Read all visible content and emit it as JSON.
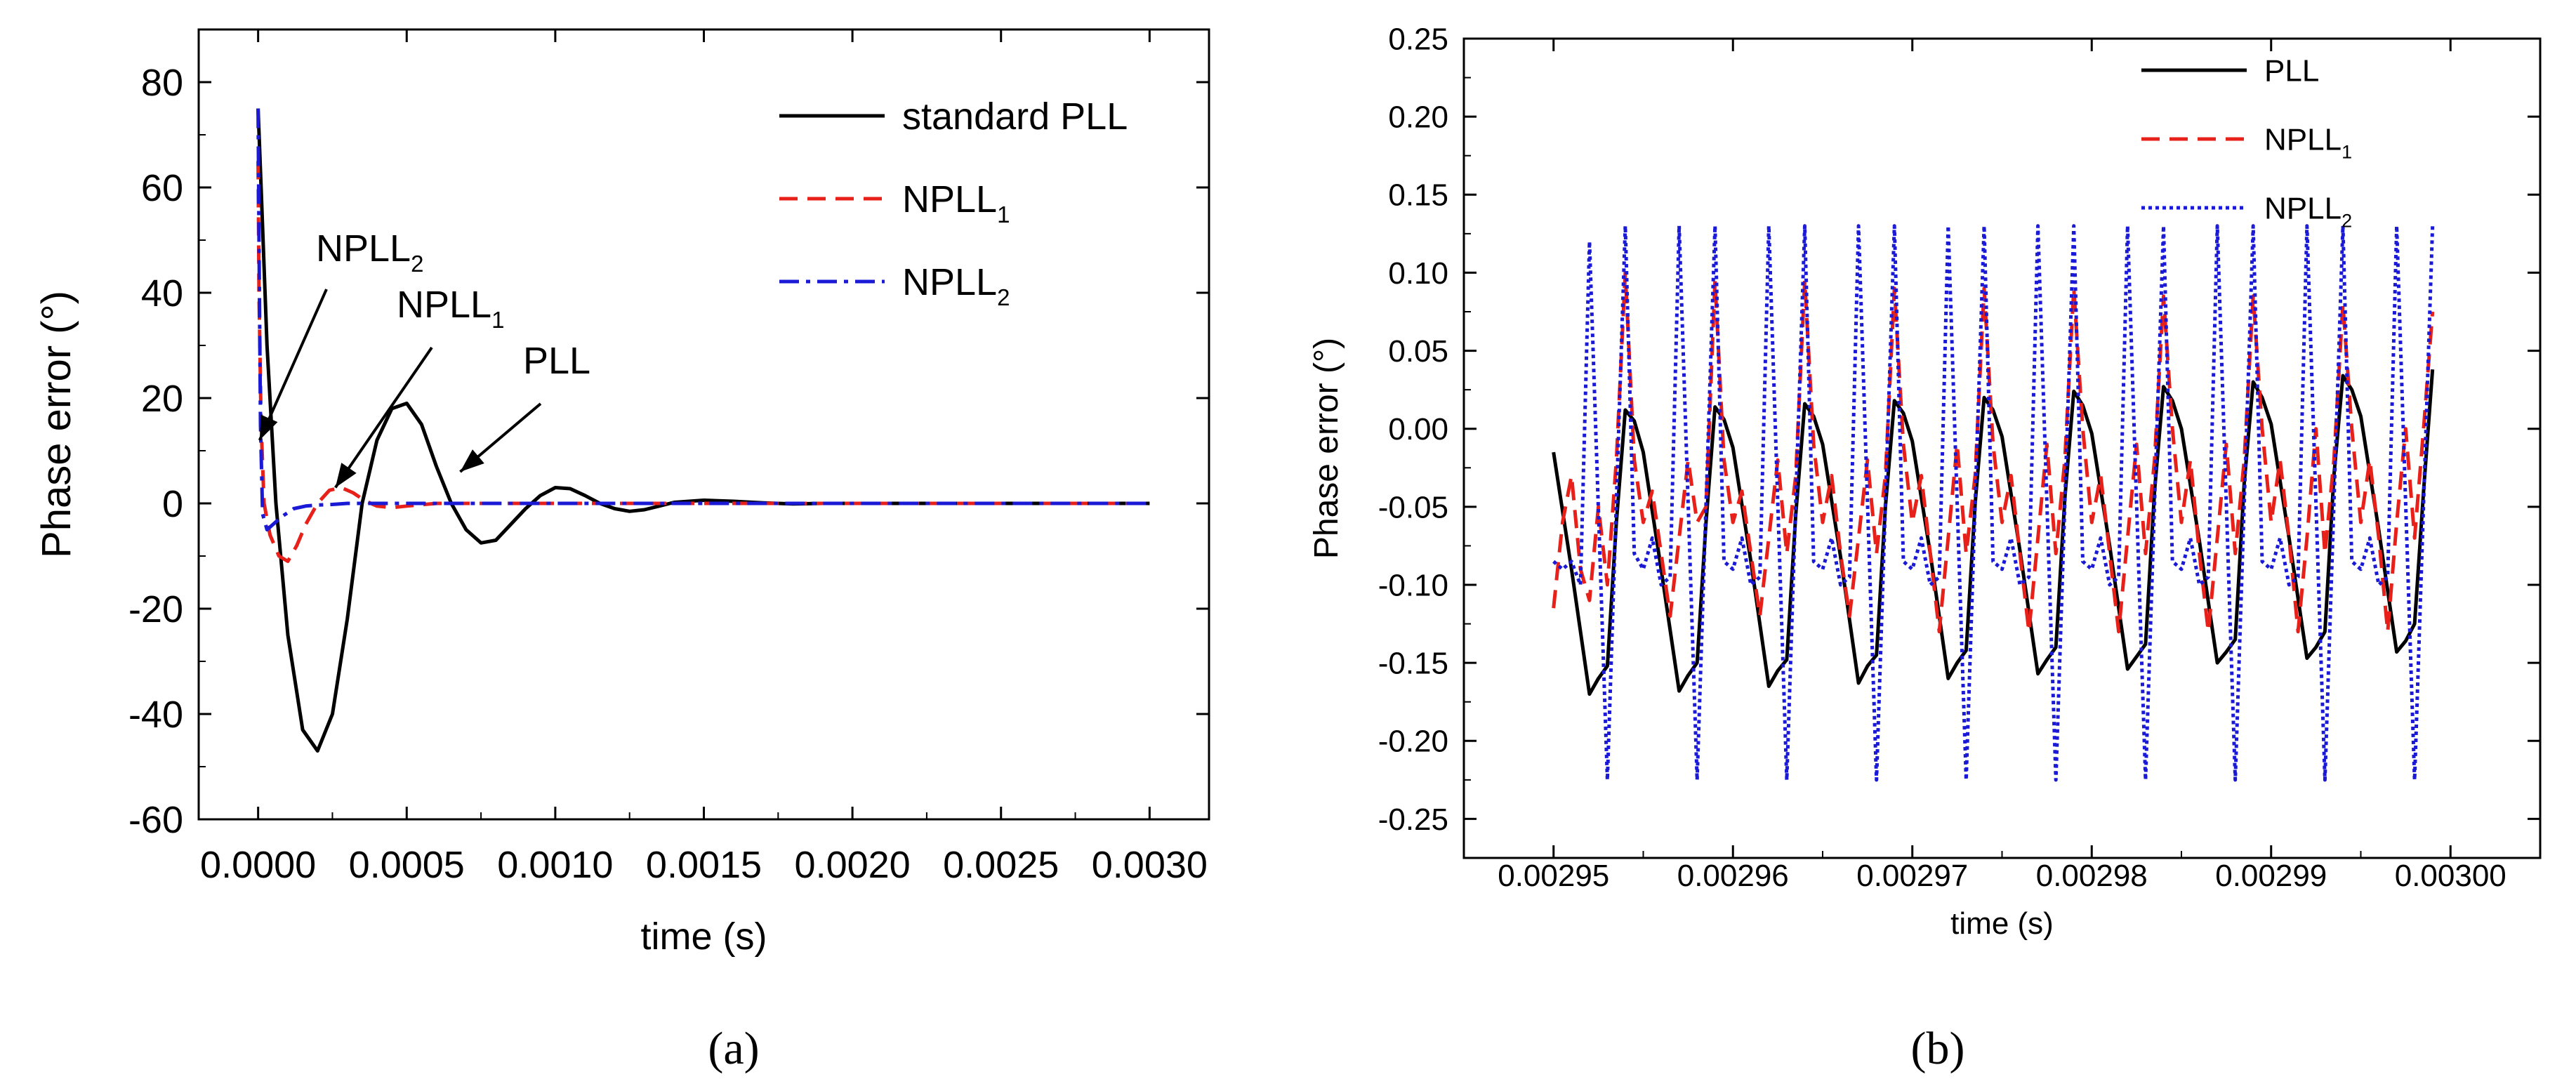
{
  "chart_data": [
    {
      "panel": "(a)",
      "type": "line",
      "xlabel": "time (s)",
      "ylabel": "Phase error (°)",
      "xlim": [
        -0.0002,
        0.0032
      ],
      "ylim": [
        -60,
        90
      ],
      "xticks": [
        0.0,
        0.0005,
        0.001,
        0.0015,
        0.002,
        0.0025,
        0.003
      ],
      "xticklabels": [
        "0.0000",
        "0.0005",
        "0.0010",
        "0.0015",
        "0.0020",
        "0.0025",
        "0.0030"
      ],
      "yticks": [
        -60,
        -40,
        -20,
        0,
        20,
        40,
        60,
        80
      ],
      "yticklabels": [
        "-60",
        "-40",
        "-20",
        "0",
        "20",
        "40",
        "60",
        "80"
      ],
      "legend": {
        "position": "top-right",
        "entries": [
          {
            "label": "standard PLL",
            "base": "standard PLL",
            "sub": "",
            "color": "#000000",
            "style": "solid"
          },
          {
            "label": "NPLL1",
            "base": "NPLL",
            "sub": "1",
            "color": "#e8201a",
            "style": "dashed"
          },
          {
            "label": "NPLL2",
            "base": "NPLL",
            "sub": "2",
            "color": "#1a1ad6",
            "style": "dashdot"
          }
        ]
      },
      "annotations": [
        {
          "base": "NPLL",
          "sub": "2",
          "points_to": [
            5e-06,
            12
          ]
        },
        {
          "base": "NPLL",
          "sub": "1",
          "points_to": [
            0.00026,
            3
          ]
        },
        {
          "base": "PLL",
          "sub": "",
          "points_to": [
            0.00068,
            6
          ]
        }
      ],
      "series": [
        {
          "name": "standard PLL",
          "color": "#000000",
          "style": "solid",
          "x": [
            0,
            1e-05,
            3e-05,
            6e-05,
            0.0001,
            0.00015,
            0.0002,
            0.00025,
            0.0003,
            0.00035,
            0.0004,
            0.00045,
            0.0005,
            0.00055,
            0.0006,
            0.00065,
            0.0007,
            0.00075,
            0.0008,
            0.00085,
            0.0009,
            0.00095,
            0.001,
            0.00105,
            0.0011,
            0.00115,
            0.0012,
            0.00125,
            0.0013,
            0.00135,
            0.0014,
            0.0015,
            0.0016,
            0.0017,
            0.0018,
            0.0019,
            0.002,
            0.0025,
            0.003
          ],
          "y": [
            75,
            60,
            30,
            0,
            -25,
            -43,
            -47,
            -40,
            -22,
            0,
            12,
            18,
            19,
            15,
            7,
            0,
            -5,
            -7.5,
            -7,
            -4,
            -1,
            1.5,
            3,
            2.8,
            1.5,
            0,
            -1,
            -1.5,
            -1.2,
            -0.5,
            0.2,
            0.6,
            0.4,
            0.1,
            -0.1,
            0,
            0,
            0,
            0
          ]
        },
        {
          "name": "NPLL1",
          "color": "#e8201a",
          "style": "dashed",
          "x": [
            0,
            3e-06,
            1e-05,
            2e-05,
            4e-05,
            7e-05,
            0.0001,
            0.00013,
            0.00016,
            0.0002,
            0.00024,
            0.00028,
            0.00032,
            0.00036,
            0.0004,
            0.00045,
            0.0005,
            0.0006,
            0.0008,
            0.001,
            0.0015,
            0.002,
            0.0025,
            0.003
          ],
          "y": [
            65,
            40,
            15,
            0,
            -6,
            -10,
            -11,
            -8,
            -4,
            0,
            2.5,
            3,
            2,
            0.5,
            -0.5,
            -0.8,
            -0.5,
            0,
            0,
            0,
            0,
            0,
            0,
            0
          ]
        },
        {
          "name": "NPLL2",
          "color": "#1a1ad6",
          "style": "dashdot",
          "x": [
            0,
            3e-06,
            8e-06,
            1.5e-05,
            3e-05,
            5e-05,
            8e-05,
            0.00012,
            0.00016,
            0.0002,
            0.00025,
            0.0003,
            0.0004,
            0.0005,
            0.001,
            0.0015,
            0.002,
            0.0025,
            0.003
          ],
          "y": [
            75,
            50,
            15,
            -2,
            -5,
            -4,
            -2.5,
            -1,
            -0.5,
            -0.3,
            -0.2,
            0,
            0,
            0,
            0,
            0,
            0,
            0,
            0
          ]
        }
      ]
    },
    {
      "panel": "(b)",
      "type": "line",
      "xlabel": "time (s)",
      "ylabel": "Phase error (°)",
      "xlim": [
        0.002945,
        0.003005
      ],
      "ylim": [
        -0.275,
        0.25
      ],
      "xticks": [
        0.00295,
        0.00296,
        0.00297,
        0.00298,
        0.00299,
        0.003
      ],
      "xticklabels": [
        "0.00295",
        "0.00296",
        "0.00297",
        "0.00298",
        "0.00299",
        "0.00300"
      ],
      "yticks": [
        -0.25,
        -0.2,
        -0.15,
        -0.1,
        -0.05,
        0.0,
        0.05,
        0.1,
        0.15,
        0.2,
        0.25
      ],
      "yticklabels": [
        "-0.25",
        "-0.20",
        "-0.15",
        "-0.10",
        "-0.05",
        "0.00",
        "0.05",
        "0.10",
        "0.15",
        "0.20",
        "0.25"
      ],
      "legend": {
        "position": "top-center",
        "entries": [
          {
            "label": "PLL",
            "base": "PLL",
            "sub": "",
            "color": "#000000",
            "style": "solid"
          },
          {
            "label": "NPLL1",
            "base": "NPLL",
            "sub": "1",
            "color": "#e8201a",
            "style": "dashed"
          },
          {
            "label": "NPLL2",
            "base": "NPLL",
            "sub": "2",
            "color": "#1a1ad6",
            "style": "dotted"
          }
        ]
      },
      "series": [
        {
          "name": "PLL",
          "color": "#000000",
          "style": "solid",
          "x": [
            0.00295,
            0.002951,
            0.002952,
            0.0029525,
            0.002953,
            0.0029535,
            0.002954,
            0.0029545,
            0.002955,
            0.002956,
            0.002957,
            0.0029575,
            0.002958,
            0.0029585,
            0.002959,
            0.0029595,
            0.00296,
            0.002961,
            0.002962,
            0.0029625,
            0.002963,
            0.0029635,
            0.002964,
            0.0029645,
            0.002965,
            0.002966,
            0.002967,
            0.0029675,
            0.002968,
            0.0029685,
            0.002969,
            0.0029695,
            0.00297,
            0.002971,
            0.002972,
            0.0029725,
            0.002973,
            0.0029735,
            0.002974,
            0.0029745,
            0.002975,
            0.002976,
            0.002977,
            0.0029775,
            0.002978,
            0.0029785,
            0.002979,
            0.0029795,
            0.00298,
            0.002981,
            0.002982,
            0.0029825,
            0.002983,
            0.0029835,
            0.002984,
            0.0029845,
            0.002985,
            0.002986,
            0.002987,
            0.0029875,
            0.002988,
            0.0029885,
            0.002989,
            0.0029895,
            0.00299,
            0.002991,
            0.002992,
            0.0029925,
            0.002993,
            0.0029935,
            0.002994,
            0.0029945,
            0.002995,
            0.002996,
            0.002997,
            0.0029975,
            0.002998,
            0.0029985,
            0.002999
          ],
          "y": [
            -0.015,
            -0.09,
            -0.17,
            -0.16,
            -0.152,
            -0.06,
            0.012,
            0.005,
            -0.015,
            -0.09,
            -0.168,
            -0.158,
            -0.15,
            -0.06,
            0.014,
            0.006,
            -0.012,
            -0.085,
            -0.165,
            -0.155,
            -0.148,
            -0.055,
            0.016,
            0.008,
            -0.01,
            -0.082,
            -0.163,
            -0.152,
            -0.145,
            -0.05,
            0.018,
            0.01,
            -0.008,
            -0.08,
            -0.16,
            -0.15,
            -0.142,
            -0.048,
            0.02,
            0.012,
            -0.005,
            -0.078,
            -0.157,
            -0.148,
            -0.14,
            -0.045,
            0.024,
            0.015,
            -0.003,
            -0.075,
            -0.154,
            -0.146,
            -0.138,
            -0.04,
            0.027,
            0.018,
            0.0,
            -0.072,
            -0.15,
            -0.143,
            -0.135,
            -0.035,
            0.03,
            0.02,
            0.003,
            -0.07,
            -0.147,
            -0.14,
            -0.13,
            -0.03,
            0.034,
            0.025,
            0.008,
            -0.065,
            -0.143,
            -0.136,
            -0.125,
            -0.04,
            0.038
          ]
        },
        {
          "name": "NPLL1",
          "color": "#e8201a",
          "style": "dashed",
          "x": [
            0.00295,
            0.0029505,
            0.002951,
            0.0029515,
            0.002952,
            0.0029525,
            0.002953,
            0.0029535,
            0.002954,
            0.0029545,
            0.002955,
            0.0029555,
            0.002956,
            0.0029565,
            0.002957,
            0.0029575,
            0.002958,
            0.0029585,
            0.002959,
            0.0029595,
            0.00296,
            0.0029605,
            0.002961,
            0.0029615,
            0.002962,
            0.0029625,
            0.002963,
            0.0029635,
            0.002964,
            0.0029645,
            0.002965,
            0.0029655,
            0.002966,
            0.0029665,
            0.002967,
            0.0029675,
            0.002968,
            0.0029685,
            0.002969,
            0.0029695,
            0.00297,
            0.0029705,
            0.002971,
            0.0029715,
            0.002972,
            0.0029725,
            0.002973,
            0.0029735,
            0.002974,
            0.0029745,
            0.002975,
            0.0029755,
            0.002976,
            0.0029765,
            0.002977,
            0.0029775,
            0.002978,
            0.0029785,
            0.002979,
            0.0029795,
            0.00298,
            0.0029805,
            0.002981,
            0.0029815,
            0.002982,
            0.0029825,
            0.002983,
            0.0029835,
            0.002984,
            0.0029845,
            0.002985,
            0.0029855,
            0.002986,
            0.0029865,
            0.002987,
            0.0029875,
            0.002988,
            0.0029885,
            0.002989,
            0.0029895,
            0.00299,
            0.0029905,
            0.002991,
            0.0029915,
            0.002992,
            0.0029925,
            0.002993,
            0.0029935,
            0.002994,
            0.0029945,
            0.002995,
            0.0029955,
            0.002996,
            0.0029965,
            0.002997,
            0.0029975,
            0.002998,
            0.0029985,
            0.002999
          ],
          "y": [
            -0.115,
            -0.06,
            -0.03,
            -0.09,
            -0.11,
            -0.05,
            -0.1,
            -0.02,
            0.1,
            -0.02,
            -0.06,
            -0.04,
            -0.08,
            -0.12,
            -0.07,
            -0.02,
            -0.06,
            -0.05,
            0.095,
            -0.02,
            -0.06,
            -0.04,
            -0.08,
            -0.12,
            -0.07,
            -0.02,
            -0.08,
            -0.03,
            0.095,
            -0.01,
            -0.06,
            -0.03,
            -0.08,
            -0.12,
            -0.07,
            -0.02,
            -0.08,
            -0.03,
            0.09,
            -0.01,
            -0.06,
            -0.03,
            -0.08,
            -0.13,
            -0.07,
            -0.01,
            -0.08,
            -0.03,
            0.09,
            -0.01,
            -0.06,
            -0.03,
            -0.08,
            -0.13,
            -0.07,
            -0.01,
            -0.08,
            -0.02,
            0.09,
            0.0,
            -0.06,
            -0.03,
            -0.08,
            -0.13,
            -0.07,
            -0.01,
            -0.08,
            -0.02,
            0.085,
            0.0,
            -0.06,
            -0.02,
            -0.08,
            -0.13,
            -0.07,
            -0.01,
            -0.08,
            -0.02,
            0.085,
            0.0,
            -0.06,
            -0.02,
            -0.07,
            -0.13,
            -0.07,
            0.0,
            -0.08,
            -0.02,
            0.08,
            0.0,
            -0.06,
            -0.02,
            -0.07,
            -0.13,
            -0.06,
            0.0,
            -0.07,
            0.0,
            0.075
          ]
        },
        {
          "name": "NPLL2",
          "color": "#1a1ad6",
          "style": "dotted",
          "x": [
            0.00295,
            0.0029505,
            0.002951,
            0.0029515,
            0.002952,
            0.002953,
            0.002954,
            0.0029545,
            0.002955,
            0.0029555,
            0.002956,
            0.0029565,
            0.002957,
            0.002958,
            0.002959,
            0.0029595,
            0.00296,
            0.0029605,
            0.002961,
            0.0029615,
            0.002962,
            0.002963,
            0.002964,
            0.0029645,
            0.002965,
            0.0029655,
            0.002966,
            0.0029665,
            0.002967,
            0.002968,
            0.002969,
            0.0029695,
            0.00297,
            0.0029705,
            0.002971,
            0.0029715,
            0.002972,
            0.002973,
            0.002974,
            0.0029745,
            0.002975,
            0.0029755,
            0.002976,
            0.0029765,
            0.002977,
            0.002978,
            0.002979,
            0.0029795,
            0.00298,
            0.0029805,
            0.002981,
            0.0029815,
            0.002982,
            0.002983,
            0.002984,
            0.0029845,
            0.002985,
            0.0029855,
            0.002986,
            0.0029865,
            0.002987,
            0.002988,
            0.002989,
            0.0029895,
            0.00299,
            0.0029905,
            0.002991,
            0.0029915,
            0.002992,
            0.002993,
            0.002994,
            0.0029945,
            0.002995,
            0.0029955,
            0.002996,
            0.0029965,
            0.002997,
            0.002998,
            0.002999
          ],
          "y": [
            -0.085,
            -0.09,
            -0.085,
            -0.1,
            0.12,
            -0.225,
            0.13,
            -0.08,
            -0.09,
            -0.07,
            -0.1,
            -0.095,
            0.13,
            -0.225,
            0.13,
            -0.085,
            -0.09,
            -0.07,
            -0.1,
            -0.095,
            0.13,
            -0.225,
            0.13,
            -0.085,
            -0.09,
            -0.07,
            -0.1,
            -0.095,
            0.13,
            -0.225,
            0.13,
            -0.085,
            -0.09,
            -0.07,
            -0.1,
            -0.095,
            0.13,
            -0.225,
            0.13,
            -0.085,
            -0.09,
            -0.07,
            -0.1,
            -0.095,
            0.13,
            -0.225,
            0.13,
            -0.085,
            -0.09,
            -0.07,
            -0.1,
            -0.095,
            0.13,
            -0.225,
            0.13,
            -0.085,
            -0.09,
            -0.07,
            -0.1,
            -0.095,
            0.13,
            -0.225,
            0.13,
            -0.085,
            -0.09,
            -0.07,
            -0.1,
            -0.095,
            0.13,
            -0.225,
            0.13,
            -0.085,
            -0.09,
            -0.07,
            -0.1,
            -0.095,
            0.13,
            -0.225,
            0.13
          ]
        }
      ]
    }
  ]
}
